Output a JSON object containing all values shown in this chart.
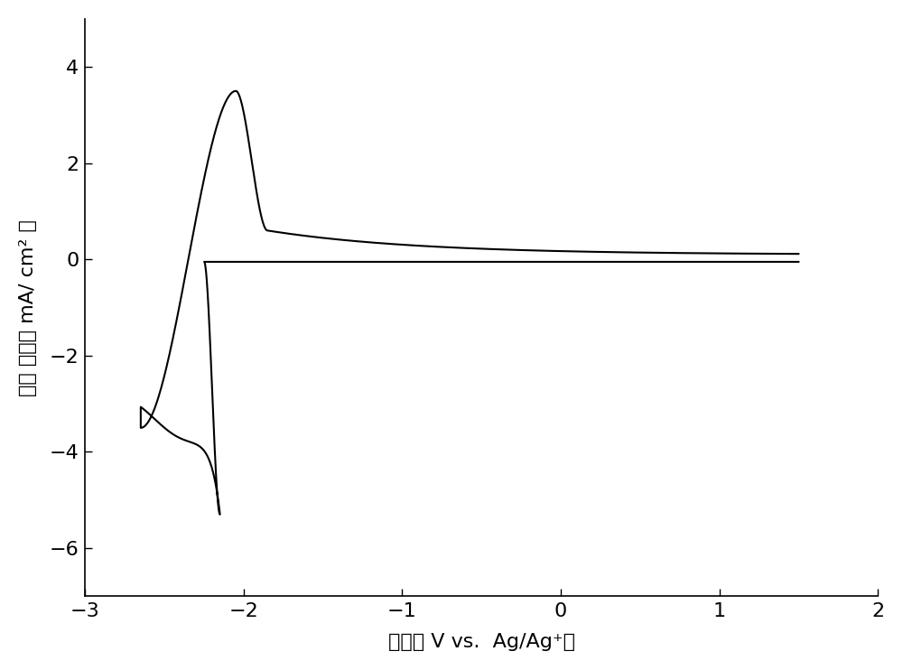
{
  "xlabel": "电压（ V vs.  Ag/Ag⁺）",
  "ylabel": "电流 密度（ mA/ cm² ）",
  "xlim": [
    -3,
    2
  ],
  "ylim": [
    -7,
    5
  ],
  "xticks": [
    -3,
    -2,
    -1,
    0,
    1,
    2
  ],
  "yticks": [
    -6,
    -4,
    -2,
    0,
    2,
    4
  ],
  "line_color": "#000000",
  "line_width": 1.5,
  "background_color": "#ffffff",
  "figsize": [
    10.0,
    7.42
  ],
  "dpi": 100
}
